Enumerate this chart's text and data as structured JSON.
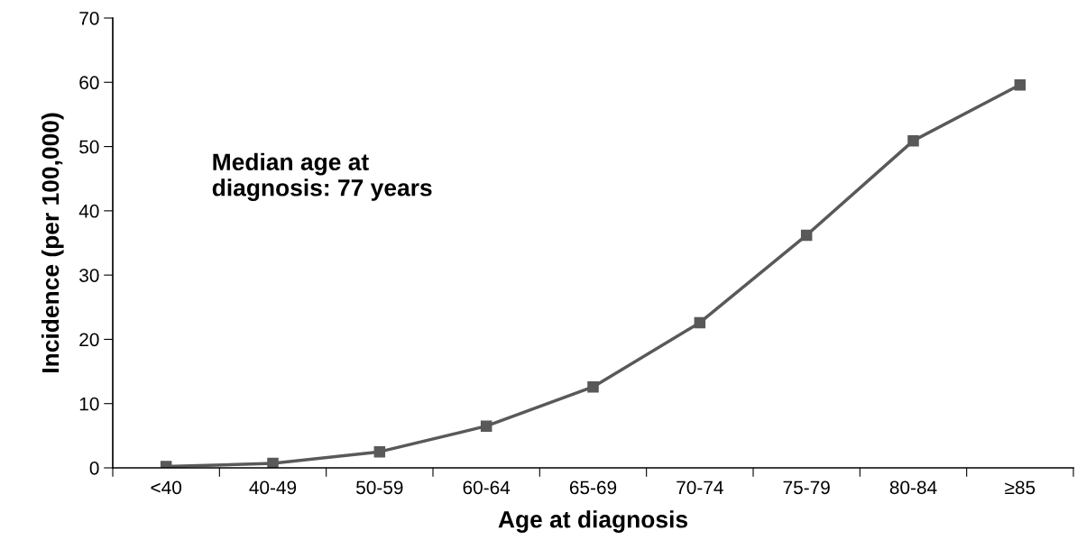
{
  "chart_data": {
    "type": "line",
    "xlabel": "Age at diagnosis",
    "ylabel": "Incidence (per 100,000)",
    "categories": [
      "<40",
      "40-49",
      "50-59",
      "60-64",
      "65-69",
      "70-74",
      "75-79",
      "80-84",
      "≥85"
    ],
    "series": [
      {
        "color": "#595959",
        "values": [
          0.2,
          0.7,
          2.5,
          6.5,
          12.6,
          22.6,
          36.2,
          50.9,
          59.6
        ]
      }
    ],
    "ylim": [
      0,
      70
    ],
    "yticks": [
      0,
      10,
      20,
      30,
      40,
      50,
      60,
      70
    ],
    "annotations": [
      "Median age at\ndiagnosis: 77 years"
    ],
    "marker": "square",
    "line_style": "solid",
    "grid": false,
    "legend": false
  }
}
